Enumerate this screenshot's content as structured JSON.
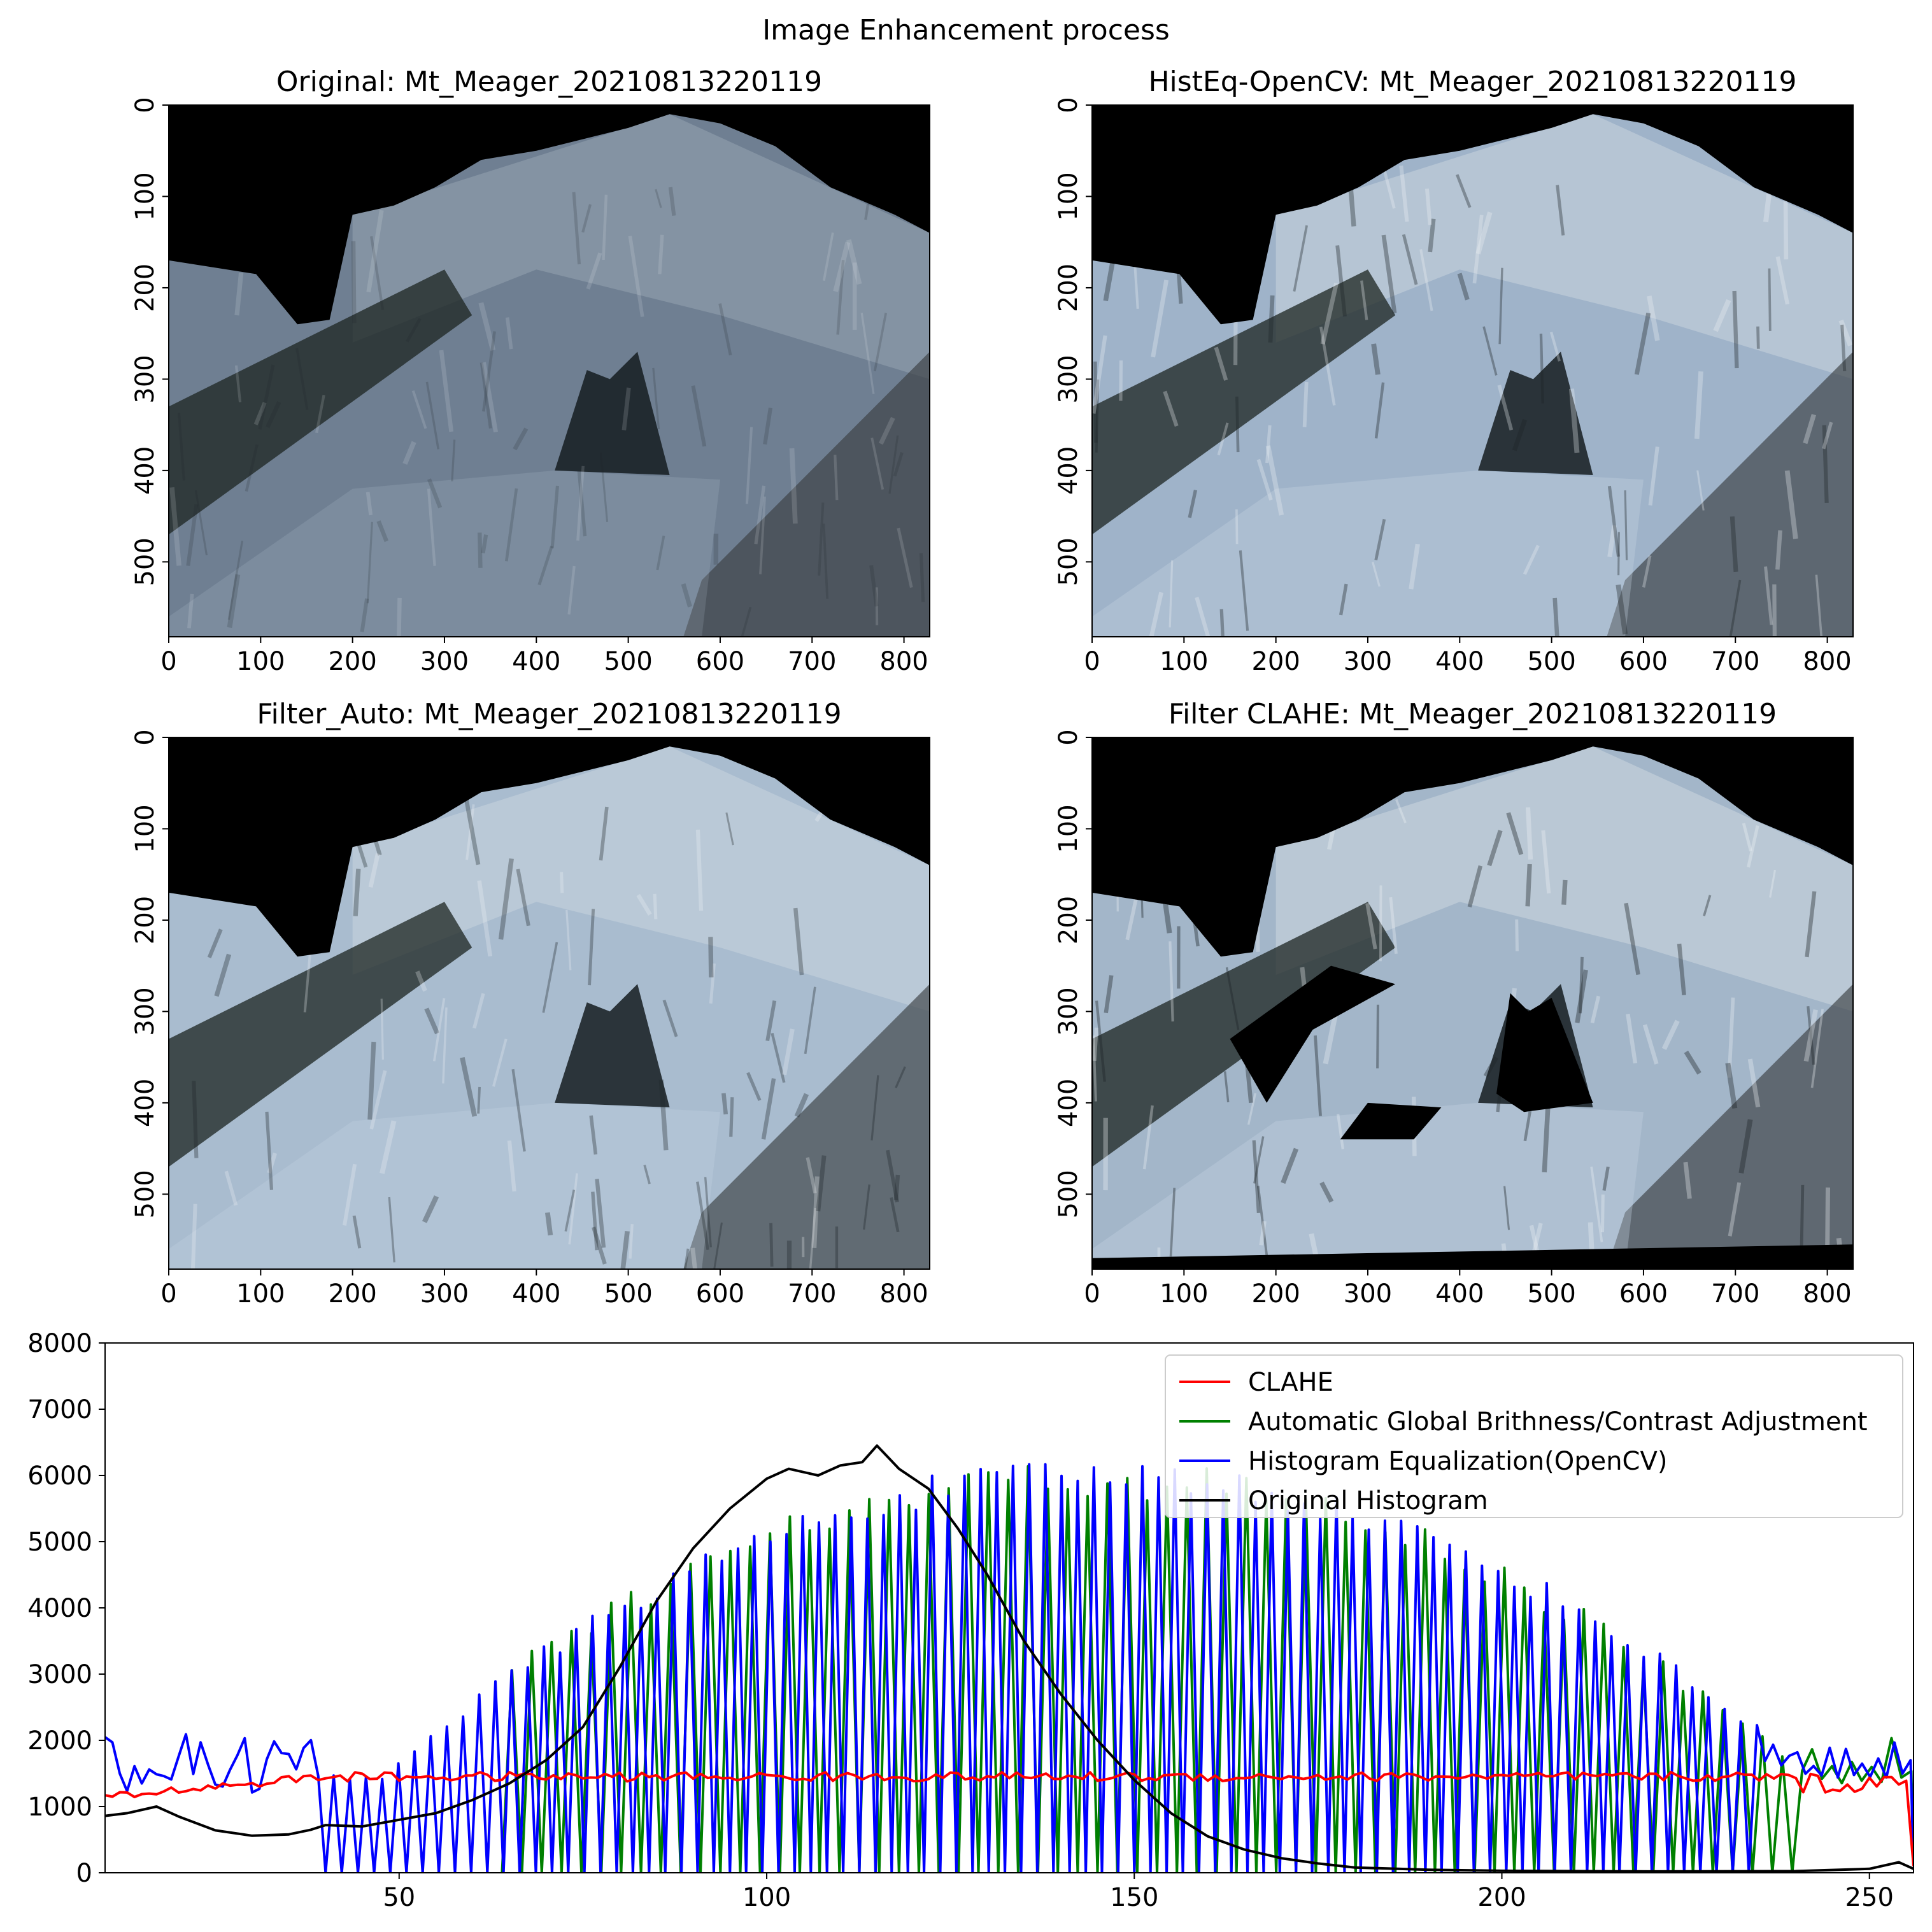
{
  "figure": {
    "suptitle": "Image Enhancement process"
  },
  "chart_data": [
    {
      "type": "image",
      "title": "Original: Mt_Meager_20210813220119",
      "xticks": [
        0,
        100,
        200,
        300,
        400,
        500,
        600,
        700,
        800
      ],
      "yticks": [
        0,
        100,
        200,
        300,
        400,
        500
      ],
      "xlim": [
        0,
        828
      ],
      "ylim": [
        582,
        0
      ],
      "style": {
        "tint": "#6f7f92",
        "contrast": 0.6,
        "shadow_mask": "none"
      }
    },
    {
      "type": "image",
      "title": "HistEq-OpenCV: Mt_Meager_20210813220119",
      "xticks": [
        0,
        100,
        200,
        300,
        400,
        500,
        600,
        700,
        800
      ],
      "yticks": [
        0,
        100,
        200,
        300,
        400,
        500
      ],
      "xlim": [
        0,
        828
      ],
      "ylim": [
        582,
        0
      ],
      "style": {
        "tint": "#9fb3c9",
        "contrast": 1.2,
        "shadow_mask": "none"
      }
    },
    {
      "type": "image",
      "title": "Filter_Auto: Mt_Meager_20210813220119",
      "xticks": [
        0,
        100,
        200,
        300,
        400,
        500,
        600,
        700,
        800
      ],
      "yticks": [
        0,
        100,
        200,
        300,
        400,
        500
      ],
      "xlim": [
        0,
        828
      ],
      "ylim": [
        582,
        0
      ],
      "style": {
        "tint": "#a9bccf",
        "contrast": 1.1,
        "shadow_mask": "none"
      }
    },
    {
      "type": "image",
      "title": "Filter CLAHE: Mt_Meager_20210813220119",
      "xticks": [
        0,
        100,
        200,
        300,
        400,
        500,
        600,
        700,
        800
      ],
      "yticks": [
        0,
        100,
        200,
        300,
        400,
        500
      ],
      "xlim": [
        0,
        828
      ],
      "ylim": [
        582,
        0
      ],
      "style": {
        "tint": "#a3b6c9",
        "contrast": 1.3,
        "shadow_mask": "black"
      }
    },
    {
      "type": "line",
      "title": "",
      "xlabel": "",
      "ylabel": "",
      "xlim": [
        10,
        256
      ],
      "ylim": [
        0,
        8000
      ],
      "xticks": [
        50,
        100,
        150,
        200,
        250
      ],
      "yticks": [
        0,
        1000,
        2000,
        3000,
        4000,
        5000,
        6000,
        7000,
        8000
      ],
      "legend": "top-right",
      "grid": false,
      "series": [
        {
          "name": "CLAHE",
          "color": "#ff0000",
          "generator": "flat",
          "level": 1450,
          "start_level": 1150,
          "noise": 70
        },
        {
          "name": "Automatic Global Brithness/Contrast Adjustment",
          "color": "#008000",
          "generator": "comb_green",
          "x_start": 64,
          "x_end": 256,
          "peak": 6200,
          "period": 2.7
        },
        {
          "name": "Histogram Equalization(OpenCV)",
          "color": "#0000ff",
          "generator": "comb_blue",
          "x_start": 10,
          "x_end": 256,
          "peak": 6250,
          "period": 2.2
        },
        {
          "name": "Original Histogram",
          "color": "#000000",
          "generator": "bell",
          "peak_x": 115,
          "peak": 6450,
          "sigma": 21
        }
      ],
      "points": {
        "Original Histogram": [
          [
            10,
            860
          ],
          [
            13,
            900
          ],
          [
            17,
            1000
          ],
          [
            20,
            850
          ],
          [
            25,
            640
          ],
          [
            30,
            560
          ],
          [
            35,
            580
          ],
          [
            38,
            650
          ],
          [
            40,
            720
          ],
          [
            45,
            700
          ],
          [
            50,
            800
          ],
          [
            55,
            900
          ],
          [
            60,
            1100
          ],
          [
            65,
            1350
          ],
          [
            70,
            1700
          ],
          [
            75,
            2200
          ],
          [
            80,
            3100
          ],
          [
            85,
            4100
          ],
          [
            90,
            4900
          ],
          [
            95,
            5500
          ],
          [
            100,
            5950
          ],
          [
            103,
            6100
          ],
          [
            107,
            6000
          ],
          [
            110,
            6150
          ],
          [
            113,
            6200
          ],
          [
            115,
            6450
          ],
          [
            118,
            6100
          ],
          [
            122,
            5800
          ],
          [
            126,
            5200
          ],
          [
            130,
            4500
          ],
          [
            135,
            3500
          ],
          [
            140,
            2700
          ],
          [
            145,
            2000
          ],
          [
            150,
            1400
          ],
          [
            155,
            900
          ],
          [
            160,
            550
          ],
          [
            165,
            350
          ],
          [
            170,
            220
          ],
          [
            175,
            140
          ],
          [
            180,
            80
          ],
          [
            190,
            45
          ],
          [
            200,
            30
          ],
          [
            220,
            20
          ],
          [
            240,
            25
          ],
          [
            250,
            60
          ],
          [
            254,
            160
          ],
          [
            256,
            60
          ]
        ]
      }
    }
  ]
}
